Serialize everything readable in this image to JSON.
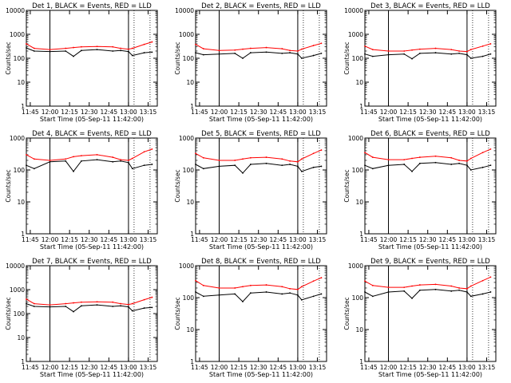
{
  "figure": {
    "xlabel": "Start Time (05-Sep-11 11:42:00)",
    "ylabel": "Counts/sec",
    "x_tick_labels": [
      "11:45",
      "12:00",
      "12:15",
      "12:30",
      "12:45",
      "13:00",
      "13:15"
    ],
    "y_tick_labels": [
      "1",
      "10",
      "100",
      "1000",
      "10000"
    ],
    "colors": {
      "events": "#000000",
      "lld": "#ff0000",
      "axes": "#000000"
    }
  },
  "chart_data": [
    {
      "type": "line",
      "title": "Det 1, BLACK = Events, RED = LLD",
      "xlabel": "Start Time (05-Sep-11 11:42:00)",
      "ylabel": "Counts/sec",
      "xlim": [
        "11:42",
        "13:22"
      ],
      "ylim": [
        1,
        10000
      ],
      "yscale": "log",
      "x": [
        11.7,
        11.8,
        12.0,
        12.2,
        12.3,
        12.4,
        12.6,
        12.8,
        12.9,
        13.0,
        13.05,
        13.2,
        13.3
      ],
      "series": [
        {
          "name": "Events",
          "values": [
            270,
            200,
            190,
            200,
            120,
            210,
            230,
            200,
            210,
            190,
            130,
            170,
            180
          ]
        },
        {
          "name": "LLD",
          "values": [
            400,
            260,
            230,
            260,
            280,
            300,
            310,
            300,
            260,
            240,
            260,
            380,
            480
          ]
        }
      ],
      "markers": [
        "12:00",
        "13:00"
      ]
    },
    {
      "type": "line",
      "title": "Det 2, BLACK = Events, RED = LLD",
      "xlabel": "Start Time (05-Sep-11 11:42:00)",
      "ylabel": "Counts/sec",
      "xlim": [
        "11:42",
        "13:22"
      ],
      "ylim": [
        1,
        10000
      ],
      "yscale": "log",
      "x": [
        11.7,
        11.8,
        12.0,
        12.2,
        12.3,
        12.4,
        12.6,
        12.8,
        12.9,
        13.0,
        13.05,
        13.2,
        13.3
      ],
      "series": [
        {
          "name": "Events",
          "values": [
            170,
            140,
            150,
            160,
            100,
            170,
            180,
            160,
            170,
            150,
            100,
            130,
            160
          ]
        },
        {
          "name": "LLD",
          "values": [
            380,
            250,
            210,
            220,
            240,
            260,
            280,
            250,
            210,
            200,
            240,
            340,
            420
          ]
        }
      ],
      "markers": [
        "12:00",
        "13:00"
      ]
    },
    {
      "type": "line",
      "title": "Det 3, BLACK = Events, RED = LLD",
      "xlabel": "Start Time (05-Sep-11 11:42:00)",
      "ylabel": "Counts/sec",
      "xlim": [
        "11:42",
        "13:22"
      ],
      "ylim": [
        1,
        10000
      ],
      "yscale": "log",
      "x": [
        11.7,
        11.8,
        12.0,
        12.2,
        12.3,
        12.4,
        12.6,
        12.8,
        12.9,
        13.0,
        13.05,
        13.2,
        13.3
      ],
      "series": [
        {
          "name": "Events",
          "values": [
            150,
            120,
            140,
            150,
            95,
            160,
            170,
            150,
            160,
            140,
            100,
            120,
            150
          ]
        },
        {
          "name": "LLD",
          "values": [
            320,
            230,
            200,
            200,
            220,
            240,
            260,
            230,
            200,
            190,
            230,
            320,
            400
          ]
        }
      ],
      "markers": [
        "12:00",
        "13:00"
      ]
    },
    {
      "type": "line",
      "title": "Det 4, BLACK = Events, RED = LLD",
      "xlabel": "Start Time (05-Sep-11 11:42:00)",
      "ylabel": "Counts/sec",
      "xlim": [
        "11:42",
        "13:22"
      ],
      "ylim": [
        1,
        1000
      ],
      "yscale": "log",
      "x": [
        11.7,
        11.8,
        12.0,
        12.2,
        12.3,
        12.4,
        12.6,
        12.8,
        12.9,
        13.0,
        13.05,
        13.2,
        13.3
      ],
      "series": [
        {
          "name": "Events",
          "values": [
            140,
            110,
            180,
            190,
            90,
            190,
            210,
            180,
            190,
            170,
            110,
            140,
            150
          ]
        },
        {
          "name": "LLD",
          "values": [
            300,
            220,
            200,
            220,
            260,
            280,
            300,
            250,
            210,
            200,
            230,
            370,
            450
          ]
        }
      ],
      "markers": [
        "12:00",
        "13:00"
      ]
    },
    {
      "type": "line",
      "title": "Det 5, BLACK = Events, RED = LLD",
      "xlabel": "Start Time (05-Sep-11 11:42:00)",
      "ylabel": "Counts/sec",
      "xlim": [
        "11:42",
        "13:22"
      ],
      "ylim": [
        1,
        1000
      ],
      "yscale": "log",
      "x": [
        11.7,
        11.8,
        12.0,
        12.2,
        12.3,
        12.4,
        12.6,
        12.8,
        12.9,
        13.0,
        13.05,
        13.2,
        13.3
      ],
      "series": [
        {
          "name": "Events",
          "values": [
            150,
            110,
            130,
            140,
            80,
            150,
            160,
            140,
            150,
            130,
            90,
            120,
            130
          ]
        },
        {
          "name": "LLD",
          "values": [
            330,
            240,
            200,
            200,
            220,
            240,
            250,
            220,
            190,
            180,
            220,
            330,
            420
          ]
        }
      ],
      "markers": [
        "12:00",
        "13:00"
      ]
    },
    {
      "type": "line",
      "title": "Det 6, BLACK = Events, RED = LLD",
      "xlabel": "Start Time (05-Sep-11 11:42:00)",
      "ylabel": "Counts/sec",
      "xlim": [
        "11:42",
        "13:22"
      ],
      "ylim": [
        1,
        1000
      ],
      "yscale": "log",
      "x": [
        11.7,
        11.8,
        12.0,
        12.2,
        12.3,
        12.4,
        12.6,
        12.8,
        12.9,
        13.0,
        13.05,
        13.2,
        13.3
      ],
      "series": [
        {
          "name": "Events",
          "values": [
            140,
            110,
            140,
            150,
            90,
            160,
            170,
            150,
            160,
            140,
            100,
            120,
            140
          ]
        },
        {
          "name": "LLD",
          "values": [
            350,
            250,
            210,
            210,
            230,
            250,
            270,
            240,
            200,
            190,
            230,
            350,
            450
          ]
        }
      ],
      "markers": [
        "12:00",
        "13:00"
      ]
    },
    {
      "type": "line",
      "title": "Det 7, BLACK = Events, RED = LLD",
      "xlabel": "Start Time (05-Sep-11 11:42:00)",
      "ylabel": "Counts/sec",
      "xlim": [
        "11:42",
        "13:22"
      ],
      "ylim": [
        1,
        10000
      ],
      "yscale": "log",
      "x": [
        11.7,
        11.8,
        12.0,
        12.2,
        12.3,
        12.4,
        12.6,
        12.8,
        12.9,
        13.0,
        13.05,
        13.2,
        13.3
      ],
      "series": [
        {
          "name": "Events",
          "values": [
            260,
            200,
            190,
            200,
            120,
            210,
            230,
            200,
            210,
            190,
            130,
            170,
            180
          ]
        },
        {
          "name": "LLD",
          "values": [
            400,
            260,
            230,
            260,
            280,
            300,
            310,
            300,
            260,
            240,
            260,
            380,
            480
          ]
        }
      ],
      "markers": [
        "12:00",
        "13:00"
      ]
    },
    {
      "type": "line",
      "title": "Det 8, BLACK = Events, RED = LLD",
      "xlabel": "Start Time (05-Sep-11 11:42:00)",
      "ylabel": "Counts/sec",
      "xlim": [
        "11:42",
        "13:22"
      ],
      "ylim": [
        1,
        1000
      ],
      "yscale": "log",
      "x": [
        11.7,
        11.8,
        12.0,
        12.2,
        12.3,
        12.4,
        12.6,
        12.8,
        12.9,
        13.0,
        13.05,
        13.2,
        13.3
      ],
      "series": [
        {
          "name": "Events",
          "values": [
            150,
            110,
            120,
            130,
            75,
            140,
            150,
            130,
            140,
            120,
            85,
            110,
            130
          ]
        },
        {
          "name": "LLD",
          "values": [
            340,
            240,
            200,
            200,
            220,
            240,
            250,
            220,
            190,
            180,
            220,
            330,
            420
          ]
        }
      ],
      "markers": [
        "12:00",
        "13:00"
      ]
    },
    {
      "type": "line",
      "title": "Det 9, BLACK = Events, RED = LLD",
      "xlabel": "Start Time (05-Sep-11 11:42:00)",
      "ylabel": "Counts/sec",
      "xlim": [
        "11:42",
        "13:22"
      ],
      "ylim": [
        1,
        1000
      ],
      "yscale": "log",
      "x": [
        11.7,
        11.8,
        12.0,
        12.2,
        12.3,
        12.4,
        12.6,
        12.8,
        12.9,
        13.0,
        13.05,
        13.2,
        13.3
      ],
      "series": [
        {
          "name": "Events",
          "values": [
            150,
            110,
            150,
            160,
            95,
            170,
            180,
            160,
            170,
            150,
            110,
            130,
            150
          ]
        },
        {
          "name": "LLD",
          "values": [
            330,
            240,
            210,
            210,
            230,
            250,
            260,
            230,
            200,
            190,
            230,
            340,
            440
          ]
        }
      ],
      "markers": [
        "12:00",
        "13:00"
      ]
    }
  ]
}
